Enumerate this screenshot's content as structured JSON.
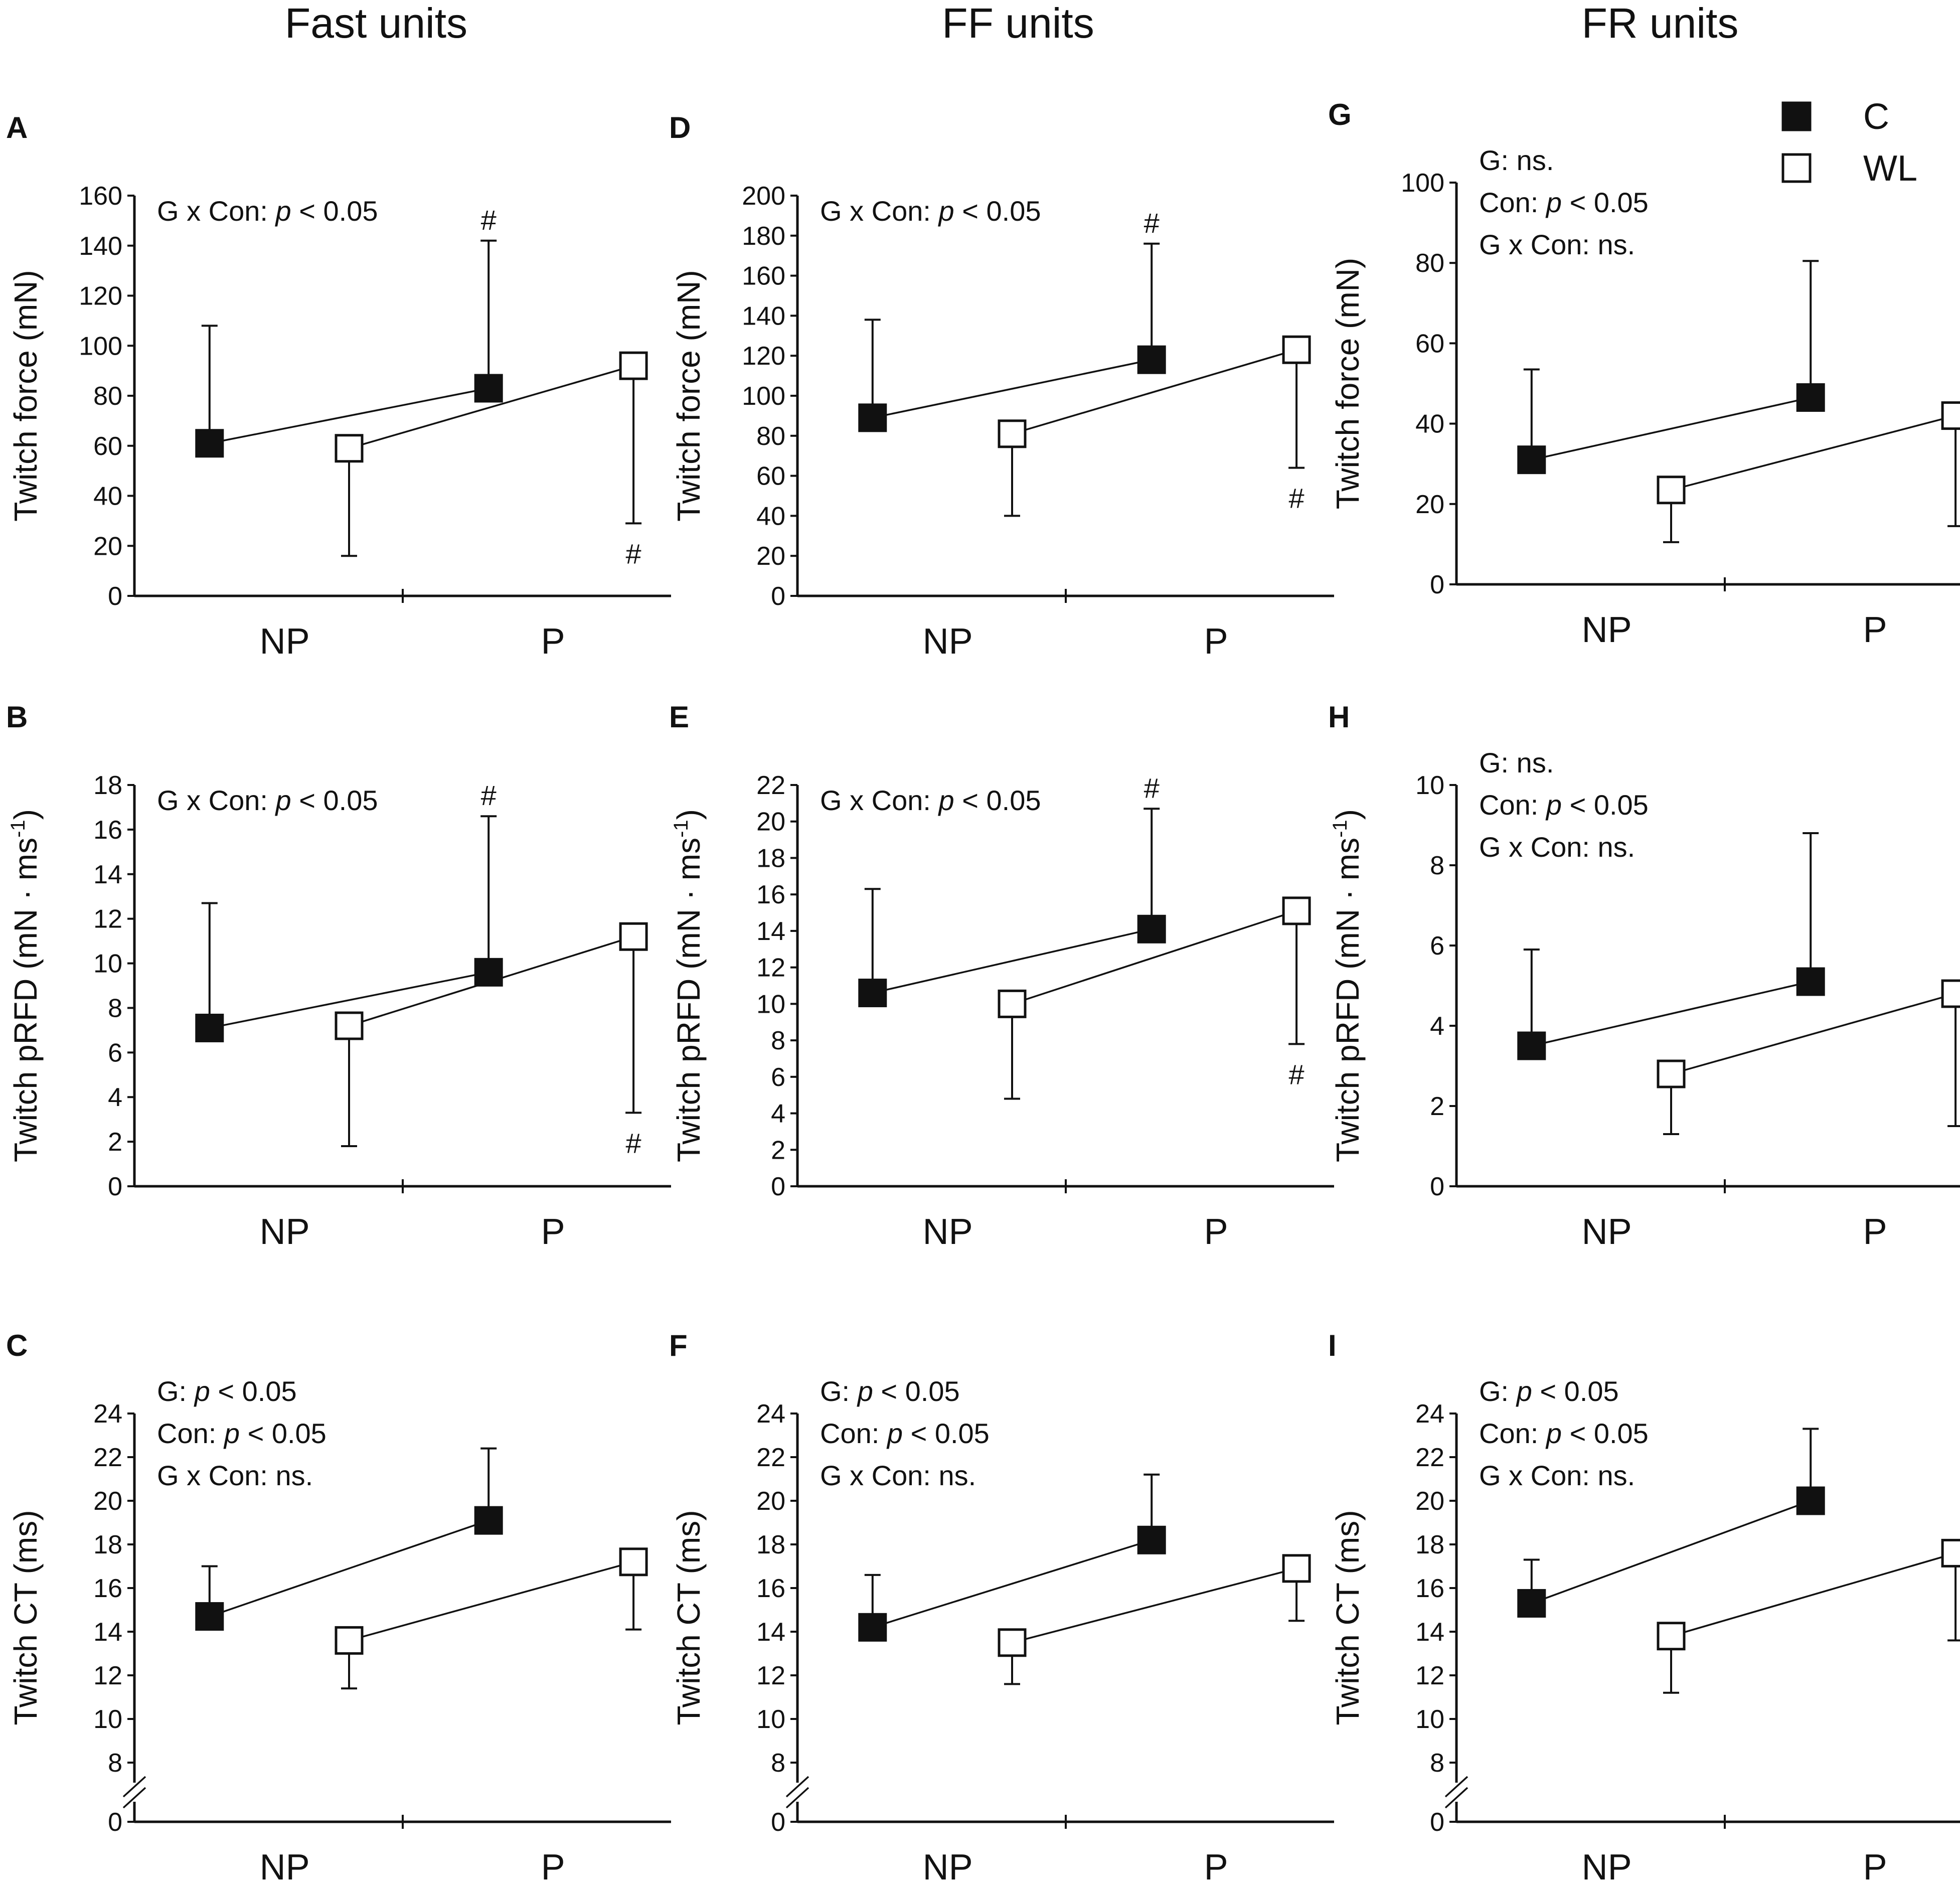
{
  "column_titles": [
    "Fast units",
    "FF units",
    "FR units"
  ],
  "legend": [
    {
      "label": "C",
      "marker": "filled-square"
    },
    {
      "label": "WL",
      "marker": "open-square"
    }
  ],
  "colors": {
    "ink": "#111111",
    "open_fill": "#ffffff",
    "background": "#ffffff"
  },
  "chart_data": [
    {
      "panel": "A",
      "column": "Fast units",
      "type": "scatter",
      "ylabel": "Twitch force (mN)",
      "ylabel_sup": "",
      "categories": [
        "NP",
        "P"
      ],
      "ylim": [
        0,
        160
      ],
      "yticks": [
        0,
        20,
        40,
        60,
        80,
        100,
        120,
        140,
        160
      ],
      "axis_break": false,
      "series": [
        {
          "name": "C",
          "values": [
            61,
            83
          ],
          "err": [
            47,
            59
          ],
          "err_dir": [
            "up",
            "up"
          ]
        },
        {
          "name": "WL",
          "values": [
            59,
            92
          ],
          "err": [
            43,
            63
          ],
          "err_dir": [
            "down",
            "down"
          ]
        }
      ],
      "stats": [
        {
          "segments": [
            {
              "text": "G x Con: "
            },
            {
              "text": "p",
              "italic": true
            },
            {
              "text": " < 0.05"
            }
          ]
        }
      ],
      "hashes": [
        {
          "series": "C",
          "category": "P",
          "pos": "above"
        },
        {
          "series": "WL",
          "category": "P",
          "pos": "below"
        }
      ]
    },
    {
      "panel": "B",
      "column": "Fast units",
      "type": "scatter",
      "ylabel": "Twitch pRFD (mN · ms",
      "ylabel_sup": "-1",
      "categories": [
        "NP",
        "P"
      ],
      "ylim": [
        0,
        18
      ],
      "yticks": [
        0,
        2,
        4,
        6,
        8,
        10,
        12,
        14,
        16,
        18
      ],
      "axis_break": false,
      "series": [
        {
          "name": "C",
          "values": [
            7.1,
            9.6
          ],
          "err": [
            5.6,
            7.0
          ],
          "err_dir": [
            "up",
            "up"
          ]
        },
        {
          "name": "WL",
          "values": [
            7.2,
            11.2
          ],
          "err": [
            5.4,
            7.9
          ],
          "err_dir": [
            "down",
            "down"
          ]
        }
      ],
      "stats": [
        {
          "segments": [
            {
              "text": "G x Con: "
            },
            {
              "text": "p",
              "italic": true
            },
            {
              "text": " < 0.05"
            }
          ]
        }
      ],
      "hashes": [
        {
          "series": "C",
          "category": "P",
          "pos": "above"
        },
        {
          "series": "WL",
          "category": "P",
          "pos": "below"
        }
      ]
    },
    {
      "panel": "C",
      "column": "Fast units",
      "type": "scatter",
      "ylabel": "Twitch CT (ms)",
      "ylabel_sup": "",
      "categories": [
        "NP",
        "P"
      ],
      "ylim": [
        8,
        24
      ],
      "yticks": [
        8,
        10,
        12,
        14,
        16,
        18,
        20,
        22,
        24
      ],
      "axis_break": true,
      "break_label": "0",
      "series": [
        {
          "name": "C",
          "values": [
            14.7,
            19.1
          ],
          "err": [
            2.3,
            3.3
          ],
          "err_dir": [
            "up",
            "up"
          ]
        },
        {
          "name": "WL",
          "values": [
            13.6,
            17.2
          ],
          "err": [
            2.2,
            3.1
          ],
          "err_dir": [
            "down",
            "down"
          ]
        }
      ],
      "stats": [
        {
          "segments": [
            {
              "text": "G: "
            },
            {
              "text": "p",
              "italic": true
            },
            {
              "text": " < 0.05"
            }
          ]
        },
        {
          "segments": [
            {
              "text": "Con: "
            },
            {
              "text": "p",
              "italic": true
            },
            {
              "text": " < 0.05"
            }
          ]
        },
        {
          "segments": [
            {
              "text": "G x Con: ns."
            }
          ]
        }
      ],
      "hashes": []
    },
    {
      "panel": "D",
      "column": "FF units",
      "type": "scatter",
      "ylabel": "Twitch force (mN)",
      "ylabel_sup": "",
      "categories": [
        "NP",
        "P"
      ],
      "ylim": [
        0,
        200
      ],
      "yticks": [
        0,
        20,
        40,
        60,
        80,
        100,
        120,
        140,
        160,
        180,
        200
      ],
      "axis_break": false,
      "series": [
        {
          "name": "C",
          "values": [
            89,
            118
          ],
          "err": [
            49,
            58
          ],
          "err_dir": [
            "up",
            "up"
          ]
        },
        {
          "name": "WL",
          "values": [
            81,
            123
          ],
          "err": [
            41,
            59
          ],
          "err_dir": [
            "down",
            "down"
          ]
        }
      ],
      "stats": [
        {
          "segments": [
            {
              "text": "G x Con: "
            },
            {
              "text": "p",
              "italic": true
            },
            {
              "text": " < 0.05"
            }
          ]
        }
      ],
      "hashes": [
        {
          "series": "C",
          "category": "P",
          "pos": "above"
        },
        {
          "series": "WL",
          "category": "P",
          "pos": "below"
        }
      ]
    },
    {
      "panel": "E",
      "column": "FF units",
      "type": "scatter",
      "ylabel": "Twitch pRFD (mN · ms",
      "ylabel_sup": "-1",
      "categories": [
        "NP",
        "P"
      ],
      "ylim": [
        0,
        22
      ],
      "yticks": [
        0,
        2,
        4,
        6,
        8,
        10,
        12,
        14,
        16,
        18,
        20,
        22
      ],
      "axis_break": false,
      "series": [
        {
          "name": "C",
          "values": [
            10.6,
            14.1
          ],
          "err": [
            5.7,
            6.6
          ],
          "err_dir": [
            "up",
            "up"
          ]
        },
        {
          "name": "WL",
          "values": [
            10.0,
            15.1
          ],
          "err": [
            5.2,
            7.3
          ],
          "err_dir": [
            "down",
            "down"
          ]
        }
      ],
      "stats": [
        {
          "segments": [
            {
              "text": "G x Con: "
            },
            {
              "text": "p",
              "italic": true
            },
            {
              "text": " < 0.05"
            }
          ]
        }
      ],
      "hashes": [
        {
          "series": "C",
          "category": "P",
          "pos": "above"
        },
        {
          "series": "WL",
          "category": "P",
          "pos": "below"
        }
      ]
    },
    {
      "panel": "F",
      "column": "FF units",
      "type": "scatter",
      "ylabel": "Twitch CT (ms)",
      "ylabel_sup": "",
      "categories": [
        "NP",
        "P"
      ],
      "ylim": [
        8,
        24
      ],
      "yticks": [
        8,
        10,
        12,
        14,
        16,
        18,
        20,
        22,
        24
      ],
      "axis_break": true,
      "break_label": "0",
      "series": [
        {
          "name": "C",
          "values": [
            14.2,
            18.2
          ],
          "err": [
            2.4,
            3.0
          ],
          "err_dir": [
            "up",
            "up"
          ]
        },
        {
          "name": "WL",
          "values": [
            13.5,
            16.9
          ],
          "err": [
            1.9,
            2.4
          ],
          "err_dir": [
            "down",
            "down"
          ]
        }
      ],
      "stats": [
        {
          "segments": [
            {
              "text": "G: "
            },
            {
              "text": "p",
              "italic": true
            },
            {
              "text": " < 0.05"
            }
          ]
        },
        {
          "segments": [
            {
              "text": "Con: "
            },
            {
              "text": "p",
              "italic": true
            },
            {
              "text": " < 0.05"
            }
          ]
        },
        {
          "segments": [
            {
              "text": "G x Con: ns."
            }
          ]
        }
      ],
      "hashes": []
    },
    {
      "panel": "G",
      "column": "FR units",
      "type": "scatter",
      "ylabel": "Twitch force (mN)",
      "ylabel_sup": "",
      "categories": [
        "NP",
        "P"
      ],
      "ylim": [
        0,
        100
      ],
      "yticks": [
        0,
        20,
        40,
        60,
        80,
        100
      ],
      "axis_break": false,
      "series": [
        {
          "name": "C",
          "values": [
            31,
            46.5
          ],
          "err": [
            22.5,
            34
          ],
          "err_dir": [
            "up",
            "up"
          ]
        },
        {
          "name": "WL",
          "values": [
            23.5,
            42
          ],
          "err": [
            13,
            27.5
          ],
          "err_dir": [
            "down",
            "down"
          ]
        }
      ],
      "stats": [
        {
          "segments": [
            {
              "text": "G: ns."
            }
          ]
        },
        {
          "segments": [
            {
              "text": "Con: "
            },
            {
              "text": "p",
              "italic": true
            },
            {
              "text": " < 0.05"
            }
          ]
        },
        {
          "segments": [
            {
              "text": "G x Con: ns."
            }
          ]
        }
      ],
      "hashes": []
    },
    {
      "panel": "H",
      "column": "FR units",
      "type": "scatter",
      "ylabel": "Twitch pRFD (mN · ms",
      "ylabel_sup": "-1",
      "categories": [
        "NP",
        "P"
      ],
      "ylim": [
        0,
        10
      ],
      "yticks": [
        0,
        2,
        4,
        6,
        8,
        10
      ],
      "axis_break": false,
      "series": [
        {
          "name": "C",
          "values": [
            3.5,
            5.1
          ],
          "err": [
            2.4,
            3.7
          ],
          "err_dir": [
            "up",
            "up"
          ]
        },
        {
          "name": "WL",
          "values": [
            2.8,
            4.8
          ],
          "err": [
            1.5,
            3.3
          ],
          "err_dir": [
            "down",
            "down"
          ]
        }
      ],
      "stats": [
        {
          "segments": [
            {
              "text": "G: ns."
            }
          ]
        },
        {
          "segments": [
            {
              "text": "Con: "
            },
            {
              "text": "p",
              "italic": true
            },
            {
              "text": " < 0.05"
            }
          ]
        },
        {
          "segments": [
            {
              "text": "G x Con: ns."
            }
          ]
        }
      ],
      "hashes": []
    },
    {
      "panel": "I",
      "column": "FR units",
      "type": "scatter",
      "ylabel": "Twitch CT (ms)",
      "ylabel_sup": "",
      "categories": [
        "NP",
        "P"
      ],
      "ylim": [
        8,
        24
      ],
      "yticks": [
        8,
        10,
        12,
        14,
        16,
        18,
        20,
        22,
        24
      ],
      "axis_break": true,
      "break_label": "0",
      "series": [
        {
          "name": "C",
          "values": [
            15.3,
            20.0
          ],
          "err": [
            2.0,
            3.3
          ],
          "err_dir": [
            "up",
            "up"
          ]
        },
        {
          "name": "WL",
          "values": [
            13.8,
            17.6
          ],
          "err": [
            2.6,
            4.0
          ],
          "err_dir": [
            "down",
            "down"
          ]
        }
      ],
      "stats": [
        {
          "segments": [
            {
              "text": "G: "
            },
            {
              "text": "p",
              "italic": true
            },
            {
              "text": " < 0.05"
            }
          ]
        },
        {
          "segments": [
            {
              "text": "Con: "
            },
            {
              "text": "p",
              "italic": true
            },
            {
              "text": " < 0.05"
            }
          ]
        },
        {
          "segments": [
            {
              "text": "G x Con: ns."
            }
          ]
        }
      ],
      "hashes": []
    }
  ]
}
